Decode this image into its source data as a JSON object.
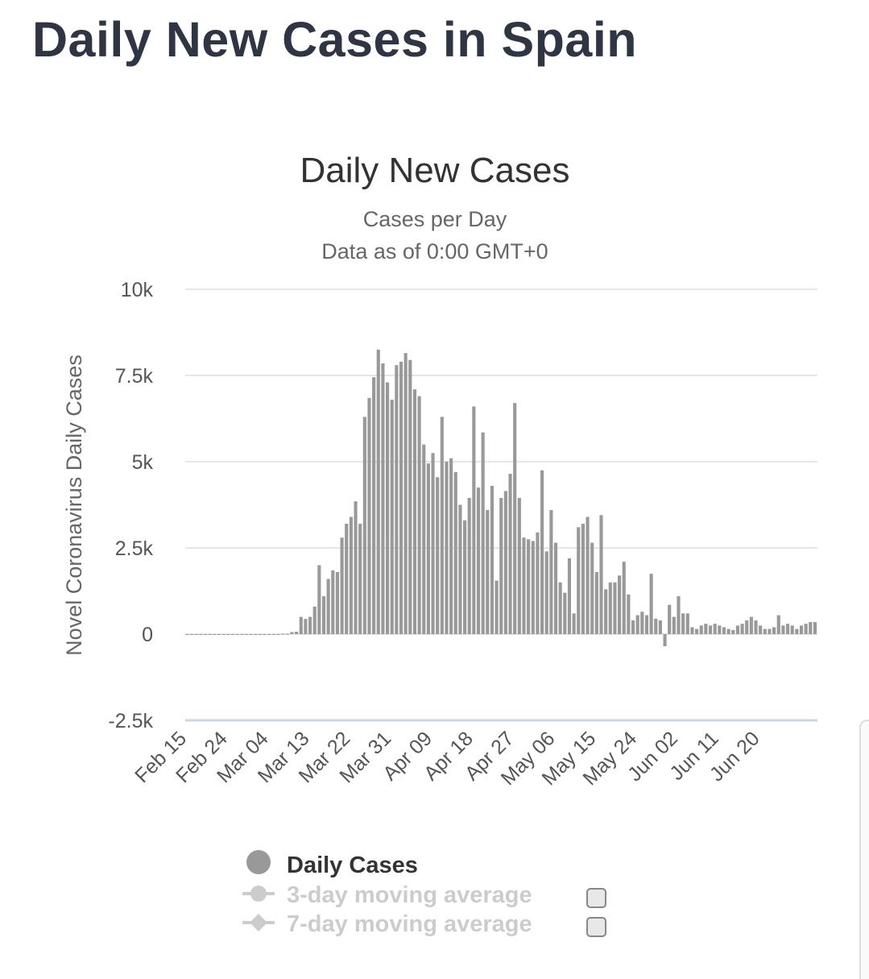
{
  "page": {
    "title": "Daily New Cases in Spain"
  },
  "chart_data": {
    "type": "bar",
    "title": "Daily New Cases",
    "subtitle_lines": [
      "Cases per Day",
      "Data as of 0:00 GMT+0"
    ],
    "ylabel": "Novel Coronavirus Daily Cases",
    "xlabel": "",
    "ylim": [
      -2500,
      10000
    ],
    "yticks": [
      10000,
      7500,
      5000,
      2500,
      0,
      -2500
    ],
    "ytick_labels": [
      "10k",
      "7.5k",
      "5k",
      "2.5k",
      "0",
      "-2.5k"
    ],
    "xtick_labels": [
      "Feb 15",
      "Feb 24",
      "Mar 04",
      "Mar 13",
      "Mar 22",
      "Mar 31",
      "Apr 09",
      "Apr 18",
      "Apr 27",
      "May 06",
      "May 15",
      "May 24",
      "Jun 02",
      "Jun 11",
      "Jun 20"
    ],
    "x_start": "Feb 15",
    "grid": true,
    "legend_position": "bottom",
    "colors": {
      "bar": "#999999",
      "grid": "#e6e6e6",
      "zero_line": "#ccd6eb",
      "legend_inactive": "#cccccc"
    },
    "series": [
      {
        "name": "Daily Cases",
        "values": [
          0,
          0,
          0,
          0,
          0,
          0,
          0,
          0,
          0,
          0,
          0,
          0,
          0,
          0,
          0,
          0,
          0,
          0,
          0,
          0,
          2,
          10,
          12,
          60,
          70,
          500,
          440,
          500,
          800,
          2000,
          1100,
          1600,
          1850,
          1800,
          2800,
          3200,
          3400,
          3850,
          3200,
          6300,
          6850,
          7450,
          8250,
          7850,
          7300,
          6800,
          7800,
          7900,
          8150,
          7950,
          7100,
          6900,
          5500,
          4950,
          5250,
          4550,
          6300,
          5000,
          5100,
          4700,
          3750,
          3300,
          3950,
          6600,
          4250,
          5850,
          3600,
          4300,
          1550,
          3950,
          4150,
          4650,
          6700,
          3950,
          2800,
          2750,
          2700,
          2950,
          4750,
          2400,
          3600,
          2650,
          1500,
          1200,
          2200,
          600,
          3100,
          3200,
          3400,
          2650,
          1800,
          3450,
          1300,
          1500,
          1500,
          1700,
          2100,
          1150,
          400,
          550,
          650,
          550,
          1750,
          450,
          400,
          -350,
          850,
          500,
          1100,
          600,
          600,
          200,
          150,
          250,
          300,
          250,
          300,
          250,
          200,
          150,
          120,
          250,
          300,
          400,
          500,
          400,
          250,
          150,
          150,
          200,
          550,
          250,
          300,
          250,
          150,
          250,
          300,
          350,
          350
        ]
      },
      {
        "name": "3-day moving average",
        "active": false
      },
      {
        "name": "7-day moving average",
        "active": false
      }
    ]
  },
  "legend": {
    "items": [
      {
        "label": "Daily Cases",
        "icon": "circle-marker-icon",
        "active": true
      },
      {
        "label": "3-day moving average",
        "icon": "line-circle-marker-icon",
        "active": false,
        "checkbox": "unchecked"
      },
      {
        "label": "7-day moving average",
        "icon": "line-diamond-marker-icon",
        "active": false,
        "checkbox": "unchecked"
      }
    ]
  }
}
